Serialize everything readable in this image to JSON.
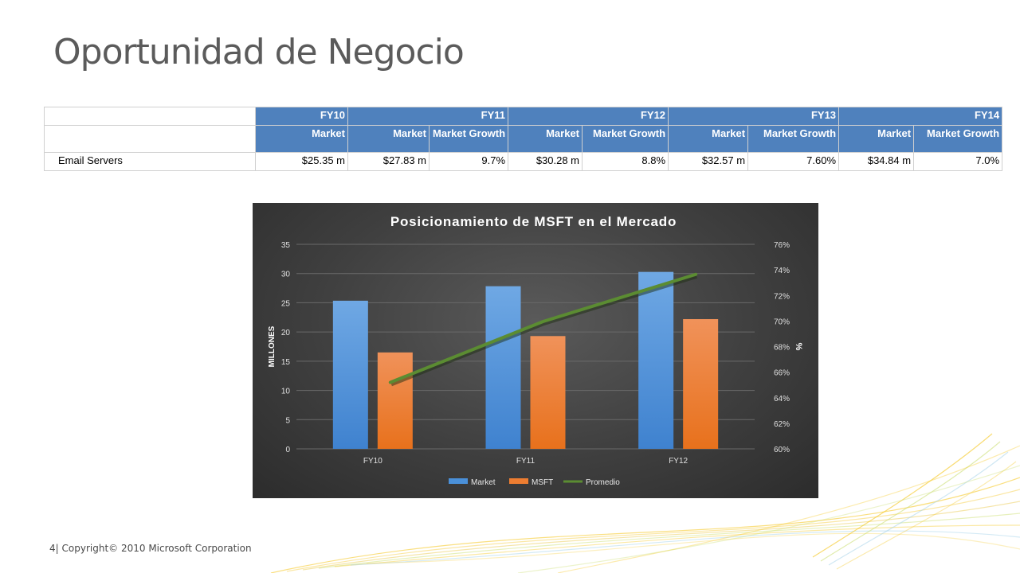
{
  "slide": {
    "title": "Oportunidad de Negocio",
    "page_number": "4",
    "separator": "|",
    "copyright": "Copyright© 2010 Microsoft Corporation"
  },
  "table": {
    "years": [
      "FY10",
      "FY11",
      "FY12",
      "FY13",
      "FY14"
    ],
    "subheaders": [
      "Market",
      "Market",
      "Market Growth",
      "Market",
      "Market Growth",
      "Market",
      "Market Growth",
      "Market",
      "Market Growth"
    ],
    "row": {
      "label": "Email Servers",
      "cells": [
        "$25.35 m",
        "$27.83 m",
        "9.7%",
        "$30.28 m",
        "8.8%",
        "$32.57 m",
        "7.60%",
        "$34.84 m",
        "7.0%"
      ]
    }
  },
  "colors": {
    "header_blue": "#4f81bd",
    "market": "#4a90d9",
    "msft": "#ed7d31",
    "promedio": "#5b8c32"
  },
  "chart_data": {
    "type": "bar",
    "title": "Posicionamiento de MSFT en el Mercado",
    "categories": [
      "FY10",
      "FY11",
      "FY12"
    ],
    "series": [
      {
        "name": "Market",
        "type": "bar",
        "axis": "left",
        "values": [
          25.35,
          27.83,
          30.28
        ]
      },
      {
        "name": "MSFT",
        "type": "bar",
        "axis": "left",
        "values": [
          16.5,
          19.3,
          22.2
        ]
      },
      {
        "name": "Promedio",
        "type": "line",
        "axis": "right",
        "values": [
          0.652,
          0.6996,
          0.7365
        ]
      }
    ],
    "ylabel": "MILLONES",
    "y2label": "%",
    "ylim": [
      0,
      35
    ],
    "y_ticks": [
      "0",
      "5",
      "10",
      "15",
      "20",
      "25",
      "30",
      "35"
    ],
    "y2lim": [
      0.6,
      0.76
    ],
    "y2_ticks": [
      "60%",
      "62%",
      "64%",
      "66%",
      "68%",
      "70%",
      "72%",
      "74%",
      "76%"
    ],
    "grid": true,
    "legend_position": "bottom"
  }
}
